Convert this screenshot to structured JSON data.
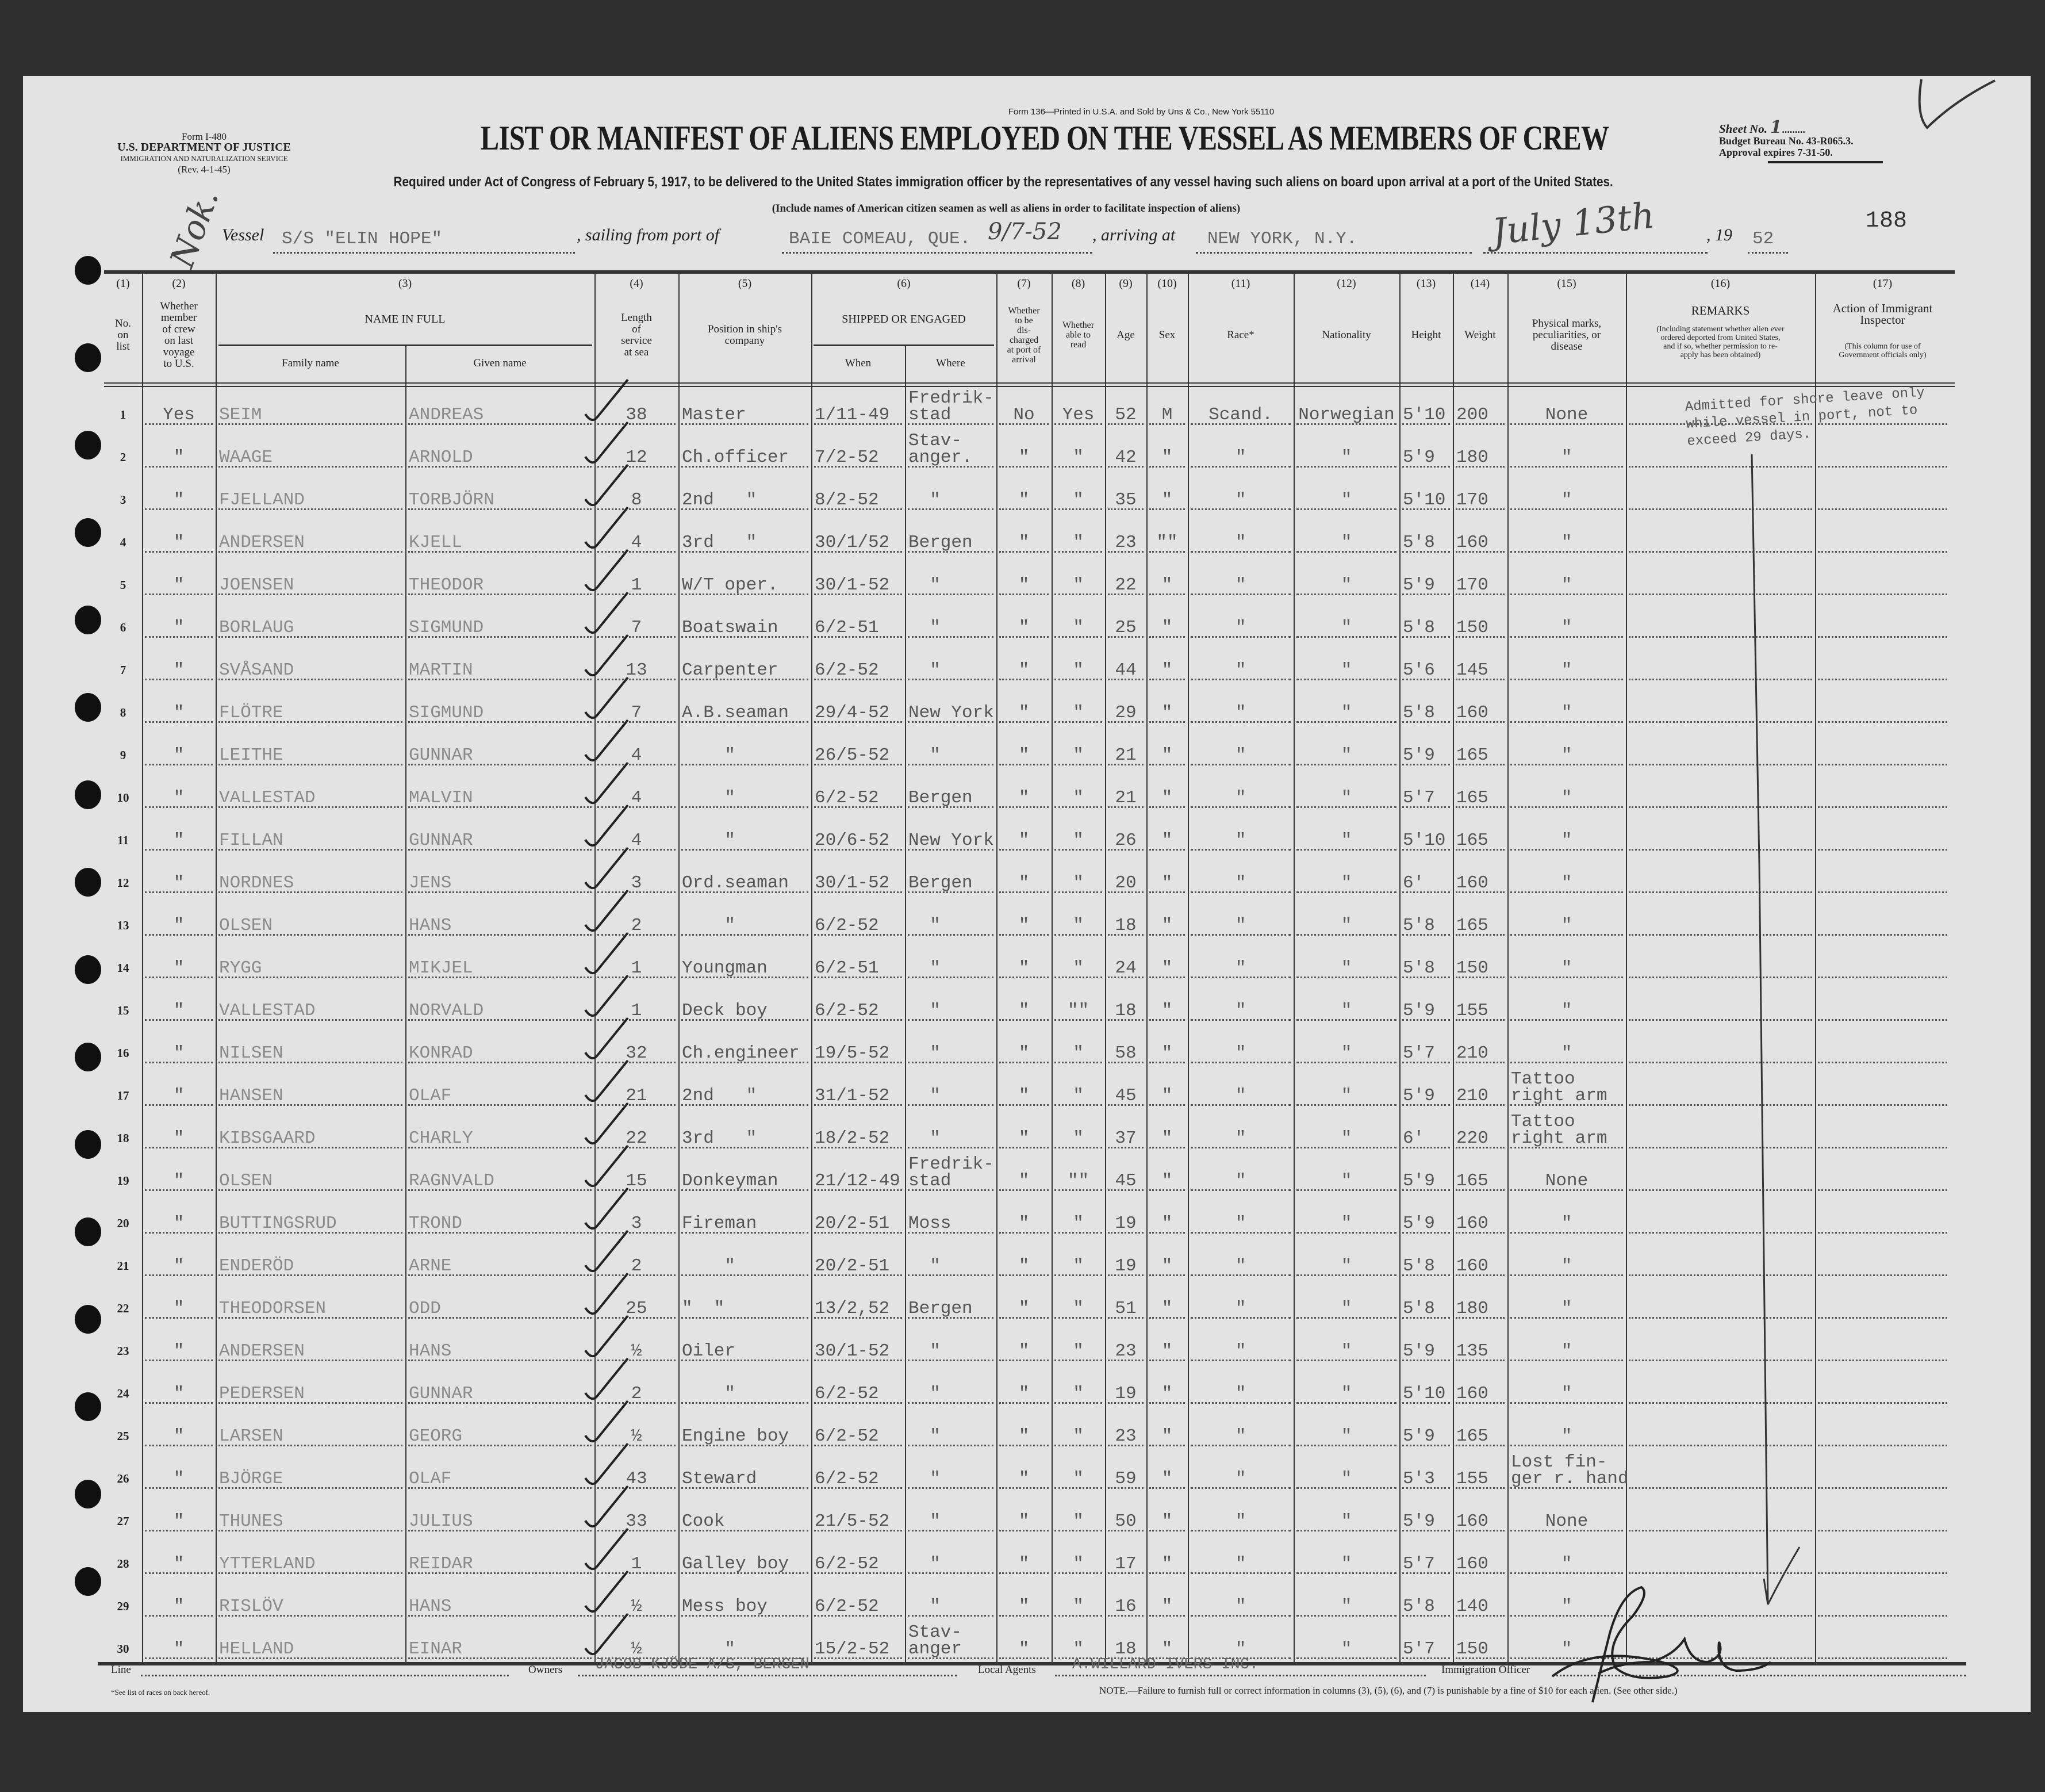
{
  "form_left": {
    "form": "Form I-480",
    "dept": "U.S. DEPARTMENT OF JUSTICE",
    "service": "IMMIGRATION AND NATURALIZATION SERVICE",
    "rev": "(Rev. 4-1-45)"
  },
  "printed_by": "Form 136—Printed in U.S.A. and Sold by Uns & Co., New York 55110",
  "title": "LIST OR MANIFEST OF ALIENS EMPLOYED ON THE VESSEL AS MEMBERS OF CREW",
  "required": "Required under Act of Congress of February 5, 1917, to be delivered to the United States immigration officer by the representatives of any vessel having such aliens on board upon arrival at a port of the United States.",
  "include_note": "(Include names of American citizen seamen as well as aliens in order to facilitate inspection of aliens)",
  "sheet": {
    "label": "Sheet No.",
    "value": "1",
    "budget": "Budget Bureau No. 43-R065.3.",
    "approval": "Approval expires 7-31-50."
  },
  "page_number": "188",
  "handwritten_note": "Nok.",
  "vessel": {
    "label": "Vessel",
    "value": "S/S \"ELIN HOPE\"",
    "sailing_label": ", sailing from port of",
    "sailing_value": "BAIE COMEAU, QUE.",
    "sailing_date": "9/7-52",
    "arriving_label": ", arriving at",
    "arriving_value": "NEW YORK, N.Y.",
    "arrival_date": "July 13th",
    "year_prefix": ", 19",
    "year_value": "52"
  },
  "columns": [
    {
      "num": "(1)",
      "label": "No.\non\nlist"
    },
    {
      "num": "(2)",
      "label": "Whether\nmember\nof crew\non last\nvoyage\nto U.S."
    },
    {
      "num": "(3)",
      "label": "NAME IN FULL",
      "sub": [
        "Family name",
        "Given name"
      ]
    },
    {
      "num": "(4)",
      "label": "Length\nof\nservice\nat sea"
    },
    {
      "num": "(5)",
      "label": "Position in ship's\ncompany"
    },
    {
      "num": "(6)",
      "label": "SHIPPED OR ENGAGED",
      "sub": [
        "When",
        "Where"
      ]
    },
    {
      "num": "(7)",
      "label": "Whether\nto be\ndis-\ncharged\nat port of\narrival"
    },
    {
      "num": "(8)",
      "label": "Whether\nable to\nread"
    },
    {
      "num": "(9)",
      "label": "Age"
    },
    {
      "num": "(10)",
      "label": "Sex"
    },
    {
      "num": "(11)",
      "label": "Race*"
    },
    {
      "num": "(12)",
      "label": "Nationality"
    },
    {
      "num": "(13)",
      "label": "Height"
    },
    {
      "num": "(14)",
      "label": "Weight"
    },
    {
      "num": "(15)",
      "label": "Physical marks,\npeculiarities, or\ndisease"
    },
    {
      "num": "(16)",
      "label": "REMARKS",
      "note": "(Including statement whether alien ever\nordered deported from United States,\nand if so, whether permission to re-\napply has been obtained)"
    },
    {
      "num": "(17)",
      "label": "Action of Immigrant\nInspector",
      "note": "(This column for use of\nGovernment officials only)"
    }
  ],
  "rows": [
    [
      "1",
      "Yes",
      "SEIM",
      "ANDREAS",
      "38",
      "Master",
      "1/11-49",
      "Fredrik-\nstad",
      "No",
      "Yes",
      "52",
      "M",
      "Scand.",
      "Norwegian",
      "5'10",
      "200",
      "None"
    ],
    [
      "2",
      "\"",
      "WAAGE",
      "ARNOLD",
      "12",
      "Ch.officer",
      "7/2-52",
      "Stav-\nanger.",
      "\"",
      "\"",
      "42",
      "\"",
      "\"",
      "\"",
      "5'9",
      "180",
      "\""
    ],
    [
      "3",
      "\"",
      "FJELLAND",
      "TORBJÖRN",
      "8",
      "2nd   \"",
      "8/2-52",
      "  \"",
      "\"",
      "\"",
      "35",
      "\"",
      "\"",
      "\"",
      "5'10",
      "170",
      "\""
    ],
    [
      "4",
      "\"",
      "ANDERSEN",
      "KJELL",
      "4",
      "3rd   \"",
      "30/1/52",
      "Bergen",
      "\"",
      "\"",
      "23",
      "\"\"",
      "\"",
      "\"",
      "5'8",
      "160",
      "\""
    ],
    [
      "5",
      "\"",
      "JOENSEN",
      "THEODOR",
      "1",
      "W/T oper.",
      "30/1-52",
      "  \"",
      "\"",
      "\"",
      "22",
      "\"",
      "\"",
      "\"",
      "5'9",
      "170",
      "\""
    ],
    [
      "6",
      "\"",
      "BORLAUG",
      "SIGMUND",
      "7",
      "Boatswain",
      "6/2-51",
      "  \"",
      "\"",
      "\"",
      "25",
      "\"",
      "\"",
      "\"",
      "5'8",
      "150",
      "\""
    ],
    [
      "7",
      "\"",
      "SVÅSAND",
      "MARTIN",
      "13",
      "Carpenter",
      "6/2-52",
      "  \"",
      "\"",
      "\"",
      "44",
      "\"",
      "\"",
      "\"",
      "5'6",
      "145",
      "\""
    ],
    [
      "8",
      "\"",
      "FLÖTRE",
      "SIGMUND",
      "7",
      "A.B.seaman",
      "29/4-52",
      "New York",
      "\"",
      "\"",
      "29",
      "\"",
      "\"",
      "\"",
      "5'8",
      "160",
      "\""
    ],
    [
      "9",
      "\"",
      "LEITHE",
      "GUNNAR",
      "4",
      "    \"",
      "26/5-52",
      "  \"",
      "\"",
      "\"",
      "21",
      "\"",
      "\"",
      "\"",
      "5'9",
      "165",
      "\""
    ],
    [
      "10",
      "\"",
      "VALLESTAD",
      "MALVIN",
      "4",
      "    \"",
      "6/2-52",
      "Bergen",
      "\"",
      "\"",
      "21",
      "\"",
      "\"",
      "\"",
      "5'7",
      "165",
      "\""
    ],
    [
      "11",
      "\"",
      "FILLAN",
      "GUNNAR",
      "4",
      "    \"",
      "20/6-52",
      "New York",
      "\"",
      "\"",
      "26",
      "\"",
      "\"",
      "\"",
      "5'10",
      "165",
      "\""
    ],
    [
      "12",
      "\"",
      "NORDNES",
      "JENS",
      "3",
      "Ord.seaman",
      "30/1-52",
      "Bergen",
      "\"",
      "\"",
      "20",
      "\"",
      "\"",
      "\"",
      "6'",
      "160",
      "\""
    ],
    [
      "13",
      "\"",
      "OLSEN",
      "HANS",
      "2",
      "    \"",
      "6/2-52",
      "  \"",
      "\"",
      "\"",
      "18",
      "\"",
      "\"",
      "\"",
      "5'8",
      "165",
      "\""
    ],
    [
      "14",
      "\"",
      "RYGG",
      "MIKJEL",
      "1",
      "Youngman",
      "6/2-51",
      "  \"",
      "\"",
      "\"",
      "24",
      "\"",
      "\"",
      "\"",
      "5'8",
      "150",
      "\""
    ],
    [
      "15",
      "\"",
      "VALLESTAD",
      "NORVALD",
      "1",
      "Deck boy",
      "6/2-52",
      "  \"",
      "\"",
      "\"\"",
      "18",
      "\"",
      "\"",
      "\"",
      "5'9",
      "155",
      "\""
    ],
    [
      "16",
      "\"",
      "NILSEN",
      "KONRAD",
      "32",
      "Ch.engineer",
      "19/5-52",
      "  \"",
      "\"",
      "\"",
      "58",
      "\"",
      "\"",
      "\"",
      "5'7",
      "210",
      "\""
    ],
    [
      "17",
      "\"",
      "HANSEN",
      "OLAF",
      "21",
      "2nd   \"",
      "31/1-52",
      "  \"",
      "\"",
      "\"",
      "45",
      "\"",
      "\"",
      "\"",
      "5'9",
      "210",
      "Tattoo\nright arm"
    ],
    [
      "18",
      "\"",
      "KIBSGAARD",
      "CHARLY",
      "22",
      "3rd   \"",
      "18/2-52",
      "  \"",
      "\"",
      "\"",
      "37",
      "\"",
      "\"",
      "\"",
      "6'",
      "220",
      "Tattoo\nright arm"
    ],
    [
      "19",
      "\"",
      "OLSEN",
      "RAGNVALD",
      "15",
      "Donkeyman",
      "21/12-49",
      "Fredrik-\nstad",
      "\"",
      "\"\"",
      "45",
      "\"",
      "\"",
      "\"",
      "5'9",
      "165",
      "None"
    ],
    [
      "20",
      "\"",
      "BUTTINGSRUD",
      "TROND",
      "3",
      "Fireman",
      "20/2-51",
      "Moss",
      "\"",
      "\"",
      "19",
      "\"",
      "\"",
      "\"",
      "5'9",
      "160",
      "\""
    ],
    [
      "21",
      "\"",
      "ENDERÖD",
      "ARNE",
      "2",
      "    \"",
      "20/2-51",
      "  \"",
      "\"",
      "\"",
      "19",
      "\"",
      "\"",
      "\"",
      "5'8",
      "160",
      "\""
    ],
    [
      "22",
      "\"",
      "THEODORSEN",
      "ODD",
      "25",
      "\"  \"",
      "13/2,52",
      "Bergen",
      "\"",
      "\"",
      "51",
      "\"",
      "\"",
      "\"",
      "5'8",
      "180",
      "\""
    ],
    [
      "23",
      "\"",
      "ANDERSEN",
      "HANS",
      "½",
      "Oiler",
      "30/1-52",
      "  \"",
      "\"",
      "\"",
      "23",
      "\"",
      "\"",
      "\"",
      "5'9",
      "135",
      "\""
    ],
    [
      "24",
      "\"",
      "PEDERSEN",
      "GUNNAR",
      "2",
      "    \"",
      "6/2-52",
      "  \"",
      "\"",
      "\"",
      "19",
      "\"",
      "\"",
      "\"",
      "5'10",
      "160",
      "\""
    ],
    [
      "25",
      "\"",
      "LARSEN",
      "GEORG",
      "½",
      "Engine boy",
      "6/2-52",
      "  \"",
      "\"",
      "\"",
      "23",
      "\"",
      "\"",
      "\"",
      "5'9",
      "165",
      "\""
    ],
    [
      "26",
      "\"",
      "BJÖRGE",
      "OLAF",
      "43",
      "Steward",
      "6/2-52",
      "  \"",
      "\"",
      "\"",
      "59",
      "\"",
      "\"",
      "\"",
      "5'3",
      "155",
      "Lost fin-\nger r. hand"
    ],
    [
      "27",
      "\"",
      "THUNES",
      "JULIUS",
      "33",
      "Cook",
      "21/5-52",
      "  \"",
      "\"",
      "\"",
      "50",
      "\"",
      "\"",
      "\"",
      "5'9",
      "160",
      "None"
    ],
    [
      "28",
      "\"",
      "YTTERLAND",
      "REIDAR",
      "1",
      "Galley boy",
      "6/2-52",
      "  \"",
      "\"",
      "\"",
      "17",
      "\"",
      "\"",
      "\"",
      "5'7",
      "160",
      "\""
    ],
    [
      "29",
      "\"",
      "RISLÖV",
      "HANS",
      "½",
      "Mess boy",
      "6/2-52",
      "  \"",
      "\"",
      "\"",
      "16",
      "\"",
      "\"",
      "\"",
      "5'8",
      "140",
      "\""
    ],
    [
      "30",
      "\"",
      "HELLAND",
      "EINAR",
      "½",
      "    \"",
      "15/2-52",
      "Stav-\nanger",
      "\"",
      "\"",
      "18",
      "\"",
      "\"",
      "\"",
      "5'7",
      "150",
      "\""
    ]
  ],
  "remarks_row1": "Admitted for shore leave only\nwhile vessel in port, not to\nexceed 29 days.",
  "footer": {
    "line_label": "Line",
    "line_value": "",
    "owners_label": "Owners",
    "owners_value": "JACOB KJÖDE A/S, BERGEN",
    "agents_label": "Local Agents",
    "agents_value": "A.WILLARD IVERS INC.",
    "officer_label": "Immigration Officer",
    "races_note": "*See list of races on back hereof.",
    "note": "NOTE.—Failure to furnish full or correct information in columns (3), (5), (6), and (7) is punishable by a fine of $10 for each alien. (See other side.)"
  }
}
